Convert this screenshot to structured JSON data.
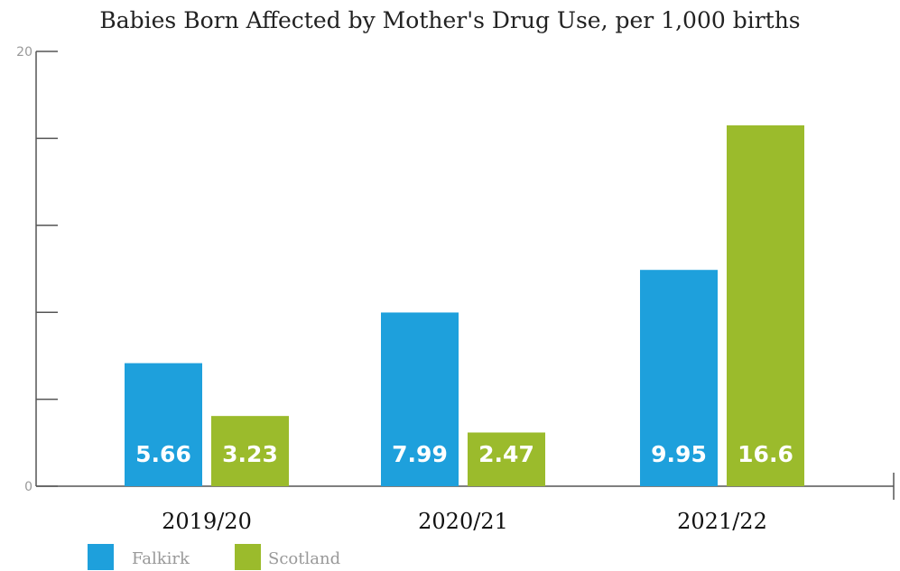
{
  "chart_data": {
    "type": "bar",
    "title": "Babies Born Affected by Mother's Drug Use, per 1,000 births",
    "categories": [
      "2019/20",
      "2020/21",
      "2021/22"
    ],
    "series": [
      {
        "name": "Falkirk",
        "values": [
          5.66,
          7.99,
          9.95
        ],
        "labels": [
          "5.66",
          "7.99",
          "9.95"
        ],
        "color": "#1ea0dc"
      },
      {
        "name": "Scotland",
        "values": [
          3.23,
          2.47,
          16.6
        ],
        "labels": [
          "3.23",
          "2.47",
          "16.6"
        ],
        "color": "#9bbb2c"
      }
    ],
    "ylim": [
      0,
      20
    ],
    "ytick_labels": [
      "0",
      "20"
    ],
    "legend_position": "bottom-left",
    "grid": false
  }
}
